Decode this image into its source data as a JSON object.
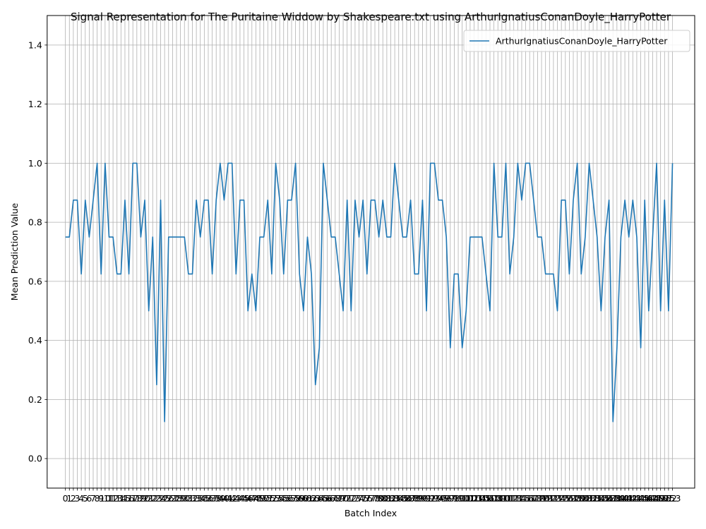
{
  "chart_data": {
    "type": "line",
    "title": "Signal Representation for The Puritaine Widdow by Shakespeare.txt using ArthurIgnatiusConanDoyle_HarryPotter",
    "xlabel": "Batch Index",
    "ylabel": "Mean Prediction Value",
    "ylim": [
      -0.1,
      1.5
    ],
    "yticks": [
      0.0,
      0.2,
      0.4,
      0.6,
      0.8,
      1.0,
      1.2,
      1.4
    ],
    "xlim": [
      -4.6,
      158.6
    ],
    "grid": true,
    "legend": "top-right",
    "colors": {
      "series": "#1f77b4",
      "grid": "#b0b0b0"
    },
    "series": [
      {
        "name": "ArthurIgnatiusConanDoyle_HarryPotter",
        "x": [
          0,
          1,
          2,
          3,
          4,
          5,
          6,
          7,
          8,
          9,
          10,
          11,
          12,
          13,
          14,
          15,
          16,
          17,
          18,
          19,
          20,
          21,
          22,
          23,
          24,
          25,
          26,
          27,
          28,
          29,
          30,
          31,
          32,
          33,
          34,
          35,
          36,
          37,
          38,
          39,
          40,
          41,
          42,
          43,
          44,
          45,
          46,
          47,
          48,
          49,
          50,
          51,
          52,
          53,
          54,
          55,
          56,
          57,
          58,
          59,
          60,
          61,
          62,
          63,
          64,
          65,
          66,
          67,
          68,
          69,
          70,
          71,
          72,
          73,
          74,
          75,
          76,
          77,
          78,
          79,
          80,
          81,
          82,
          83,
          84,
          85,
          86,
          87,
          88,
          89,
          90,
          91,
          92,
          93,
          94,
          95,
          96,
          97,
          98,
          99,
          100,
          101,
          102,
          103,
          104,
          105,
          106,
          107,
          108,
          109,
          110,
          111,
          112,
          113,
          114,
          115,
          116,
          117,
          118,
          119,
          120,
          121,
          122,
          123,
          124,
          125,
          126,
          127,
          128,
          129,
          130,
          131,
          132,
          133,
          134,
          135,
          136,
          137,
          138,
          139,
          140,
          141,
          142,
          143,
          144,
          145,
          146,
          147,
          148,
          149,
          150,
          151,
          152,
          153
        ],
        "values": [
          0.75,
          0.75,
          0.875,
          0.875,
          0.625,
          0.875,
          0.75,
          0.875,
          1.0,
          0.625,
          1.0,
          0.75,
          0.75,
          0.625,
          0.625,
          0.875,
          0.625,
          1.0,
          1.0,
          0.75,
          0.875,
          0.5,
          0.75,
          0.25,
          0.875,
          0.125,
          0.75,
          0.75,
          0.75,
          0.75,
          0.75,
          0.625,
          0.625,
          0.875,
          0.75,
          0.875,
          0.875,
          0.625,
          0.875,
          1.0,
          0.875,
          1.0,
          1.0,
          0.625,
          0.875,
          0.875,
          0.5,
          0.625,
          0.5,
          0.75,
          0.75,
          0.875,
          0.625,
          1.0,
          0.875,
          0.625,
          0.875,
          0.875,
          1.0,
          0.625,
          0.5,
          0.75,
          0.625,
          0.25,
          0.375,
          1.0,
          0.875,
          0.75,
          0.75,
          0.625,
          0.5,
          0.875,
          0.5,
          0.875,
          0.75,
          0.875,
          0.625,
          0.875,
          0.875,
          0.75,
          0.875,
          0.75,
          0.75,
          1.0,
          0.875,
          0.75,
          0.75,
          0.875,
          0.625,
          0.625,
          0.875,
          0.5,
          1.0,
          1.0,
          0.875,
          0.875,
          0.75,
          0.375,
          0.625,
          0.625,
          0.375,
          0.5,
          0.75,
          0.75,
          0.75,
          0.75,
          0.625,
          0.5,
          1.0,
          0.75,
          0.75,
          1.0,
          0.625,
          0.75,
          1.0,
          0.875,
          1.0,
          1.0,
          0.875,
          0.75,
          0.75,
          0.625,
          0.625,
          0.625,
          0.5,
          0.875,
          0.875,
          0.625,
          0.875,
          1.0,
          0.625,
          0.75,
          1.0,
          0.875,
          0.75,
          0.5,
          0.75,
          0.875,
          0.125,
          0.375,
          0.75,
          0.875,
          0.75,
          0.875,
          0.75,
          0.375,
          0.875,
          0.5,
          0.75,
          1.0,
          0.5,
          0.875,
          0.5,
          1.0
        ]
      }
    ]
  }
}
